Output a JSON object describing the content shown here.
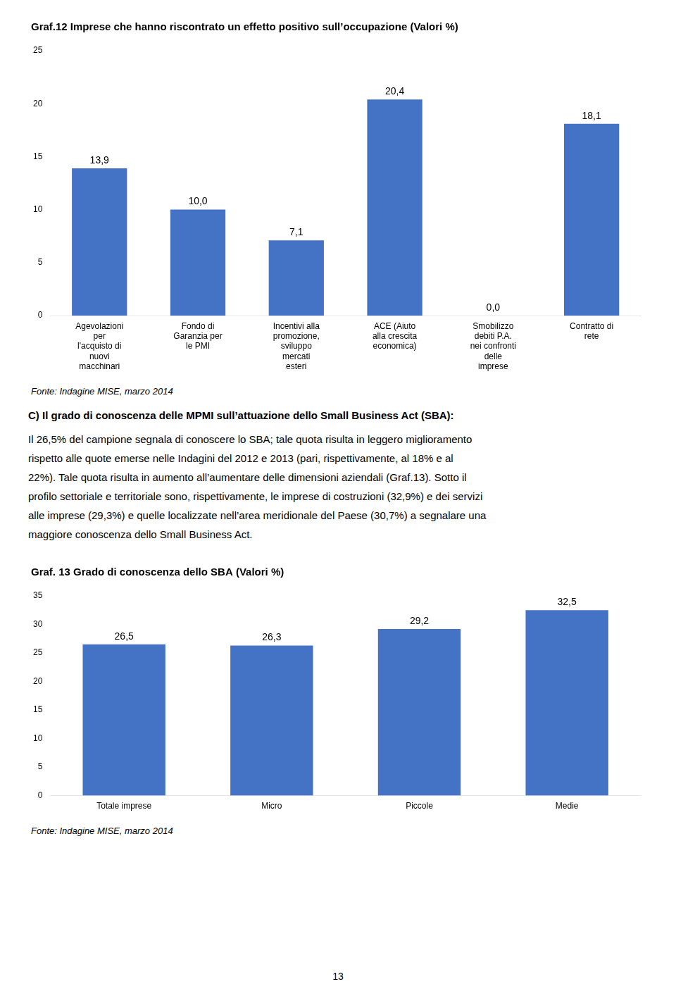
{
  "chart_data": [
    {
      "type": "bar",
      "title": "Graf.12 Imprese che hanno riscontrato un effetto positivo sull’occupazione (Valori %)",
      "categories": [
        "Agevolazioni\nper\nl'acquisto di\nnuovi\nmacchinari",
        "Fondo di\nGaranzia per\nle PMI",
        "Incentivi alla\npromozione,\nsviluppo\nmercati\nesteri",
        "ACE (Aiuto\nalla crescita\neconomica)",
        "Smobilizzo\ndebiti P.A.\nnei confronti\ndelle\nimprese",
        "Contratto di\nrete"
      ],
      "values": [
        13.9,
        10.0,
        7.1,
        20.4,
        0.0,
        18.1
      ],
      "value_labels": [
        "13,9",
        "10,0",
        "7,1",
        "20,4",
        "0,0",
        "18,1"
      ],
      "data_labels": true,
      "color": "#4472C4",
      "ylim": [
        0,
        25
      ],
      "yticks": [
        0,
        5,
        10,
        15,
        20,
        25
      ],
      "grid": false,
      "annotations": [
        "Fonte: Indagine MISE, marzo 2014"
      ]
    },
    {
      "type": "bar",
      "title": "Graf. 13 Grado di conoscenza dello SBA (Valori %)",
      "categories": [
        "Totale imprese",
        "Micro",
        "Piccole",
        "Medie"
      ],
      "values": [
        26.5,
        26.3,
        29.2,
        32.5
      ],
      "value_labels": [
        "26,5",
        "26,3",
        "29,2",
        "32,5"
      ],
      "data_labels": true,
      "color": "#4472C4",
      "ylim": [
        0,
        35
      ],
      "yticks": [
        0,
        5,
        10,
        15,
        20,
        25,
        30,
        35
      ],
      "grid": false,
      "annotations": [
        "Fonte: Indagine MISE, marzo 2014"
      ]
    }
  ],
  "heading": "C) Il grado di conoscenza delle MPMI sull’attuazione dello Small Business Act (SBA):",
  "body_lines": [
    "Il 26,5% del campione segnala di conoscere lo SBA; tale quota risulta in leggero miglioramento",
    "rispetto alle quote emerse nelle Indagini del 2012 e 2013 (pari, rispettivamente, al 18% e al",
    "22%). Tale quota risulta in aumento all’aumentare delle dimensioni aziendali (Graf.13). Sotto il",
    "profilo settoriale e territoriale sono, rispettivamente, le imprese di costruzioni (32,9%) e dei servizi",
    "alle imprese (29,3%) e quelle localizzate nell’area meridionale del Paese (30,7%) a segnalare una",
    "maggiore conoscenza dello Small Business Act."
  ],
  "page_number": "13"
}
